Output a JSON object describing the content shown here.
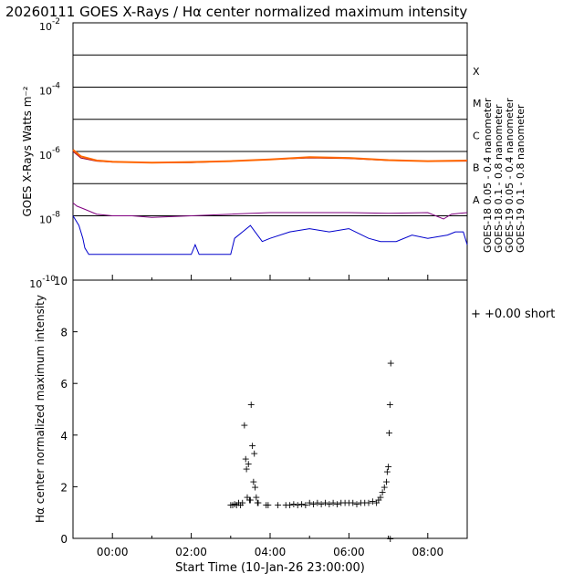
{
  "title": "20260111 GOES X-Rays / Hα center normalized maximum intensity",
  "colors": {
    "goes18_short": "#0000cc",
    "goes18_long": "#990033",
    "goes19_short": "#800080",
    "goes19_long": "#ff6600",
    "halpha": "#22dd22"
  },
  "chart_data": [
    {
      "type": "line",
      "name": "goes-xray-flux",
      "ylabel": "GOES X-Rays Watts m⁻²",
      "yscale": "log",
      "ylim_exp": [
        -10,
        -2
      ],
      "y_tick_labels": [
        {
          "exp": -2,
          "base": "10",
          "sup": "-2"
        },
        {
          "exp": -4,
          "base": "10",
          "sup": "-4"
        },
        {
          "exp": -6,
          "base": "10",
          "sup": "-6"
        },
        {
          "exp": -8,
          "base": "10",
          "sup": "-8"
        },
        {
          "exp": -10,
          "base": "10",
          "sup": "-10"
        }
      ],
      "flare_class_lines_exp": [
        -3,
        -4,
        -5,
        -6,
        -7,
        -8
      ],
      "flare_classes": [
        {
          "label": "X",
          "exp": -3.5
        },
        {
          "label": "M",
          "exp": -4.5
        },
        {
          "label": "C",
          "exp": -5.5
        },
        {
          "label": "B",
          "exp": -6.5
        },
        {
          "label": "A",
          "exp": -7.5
        }
      ],
      "xlim_hours": [
        -1,
        9
      ],
      "series": [
        {
          "name": "GOES-18 0.05 - 0.4 nanometer",
          "color_key": "goes18_short",
          "points": [
            [
              -1.0,
              -8.0
            ],
            [
              -0.85,
              -8.3
            ],
            [
              -0.75,
              -8.7
            ],
            [
              -0.7,
              -9.0
            ],
            [
              -0.6,
              -9.2
            ],
            [
              0.0,
              -9.2
            ],
            [
              1.0,
              -9.2
            ],
            [
              2.0,
              -9.2
            ],
            [
              2.1,
              -8.9
            ],
            [
              2.2,
              -9.2
            ],
            [
              2.6,
              -9.2
            ],
            [
              3.0,
              -9.2
            ],
            [
              3.1,
              -8.7
            ],
            [
              3.3,
              -8.5
            ],
            [
              3.5,
              -8.3
            ],
            [
              3.8,
              -8.8
            ],
            [
              4.0,
              -8.7
            ],
            [
              4.5,
              -8.5
            ],
            [
              5.0,
              -8.4
            ],
            [
              5.5,
              -8.5
            ],
            [
              6.0,
              -8.4
            ],
            [
              6.5,
              -8.7
            ],
            [
              6.8,
              -8.8
            ],
            [
              7.2,
              -8.8
            ],
            [
              7.6,
              -8.6
            ],
            [
              8.0,
              -8.7
            ],
            [
              8.5,
              -8.6
            ],
            [
              8.7,
              -8.5
            ],
            [
              8.9,
              -8.5
            ],
            [
              9.0,
              -8.9
            ]
          ]
        },
        {
          "name": "GOES-18 0.1 - 0.8 nanometer",
          "color_key": "goes18_long",
          "points": [
            [
              -1.0,
              -6.0
            ],
            [
              -0.8,
              -6.2
            ],
            [
              -0.4,
              -6.3
            ],
            [
              0.0,
              -6.33
            ],
            [
              1.0,
              -6.35
            ],
            [
              2.0,
              -6.35
            ],
            [
              3.0,
              -6.3
            ],
            [
              4.0,
              -6.25
            ],
            [
              5.0,
              -6.2
            ],
            [
              6.0,
              -6.22
            ],
            [
              7.0,
              -6.28
            ],
            [
              8.0,
              -6.3
            ],
            [
              9.0,
              -6.3
            ]
          ]
        },
        {
          "name": "GOES-19 0.05 - 0.4 nanometer",
          "color_key": "goes19_short",
          "points": [
            [
              -1.0,
              -7.6
            ],
            [
              -0.9,
              -7.7
            ],
            [
              -0.7,
              -7.8
            ],
            [
              -0.4,
              -7.95
            ],
            [
              0.0,
              -8.0
            ],
            [
              0.5,
              -8.0
            ],
            [
              1.0,
              -8.05
            ],
            [
              2.0,
              -8.0
            ],
            [
              3.0,
              -7.95
            ],
            [
              4.0,
              -7.9
            ],
            [
              5.0,
              -7.9
            ],
            [
              6.0,
              -7.9
            ],
            [
              7.0,
              -7.92
            ],
            [
              8.0,
              -7.9
            ],
            [
              8.4,
              -8.1
            ],
            [
              8.6,
              -7.95
            ],
            [
              9.0,
              -7.9
            ]
          ]
        },
        {
          "name": "GOES-19 0.1 - 0.8 nanometer",
          "color_key": "goes19_long",
          "points": [
            [
              -1.0,
              -5.95
            ],
            [
              -0.8,
              -6.15
            ],
            [
              -0.4,
              -6.28
            ],
            [
              0.0,
              -6.32
            ],
            [
              1.0,
              -6.35
            ],
            [
              2.0,
              -6.33
            ],
            [
              3.0,
              -6.3
            ],
            [
              4.0,
              -6.25
            ],
            [
              5.0,
              -6.18
            ],
            [
              6.0,
              -6.2
            ],
            [
              7.0,
              -6.27
            ],
            [
              8.0,
              -6.3
            ],
            [
              9.0,
              -6.28
            ]
          ]
        }
      ]
    },
    {
      "type": "scatter",
      "name": "halpha-intensity",
      "ylabel": "Hα center normalized maximum intensity",
      "xlabel": "Start Time (10-Jan-26 23:00:00)",
      "ylim": [
        0,
        10
      ],
      "y_ticks": [
        0,
        2,
        4,
        6,
        8,
        10
      ],
      "xlim_hours": [
        -1,
        9
      ],
      "x_tick_labels": [
        {
          "h": 0,
          "label": "00:00"
        },
        {
          "h": 2,
          "label": "02:00"
        },
        {
          "h": 4,
          "label": "04:00"
        },
        {
          "h": 6,
          "label": "06:00"
        },
        {
          "h": 8,
          "label": "08:00"
        }
      ],
      "legend": "+ +0.00 short",
      "marker": "+",
      "points": [
        [
          3.0,
          1.3
        ],
        [
          3.05,
          1.3
        ],
        [
          3.1,
          1.35
        ],
        [
          3.15,
          1.3
        ],
        [
          3.2,
          1.4
        ],
        [
          3.25,
          1.3
        ],
        [
          3.3,
          1.4
        ],
        [
          3.35,
          4.4
        ],
        [
          3.38,
          3.1
        ],
        [
          3.4,
          2.7
        ],
        [
          3.42,
          1.6
        ],
        [
          3.45,
          2.9
        ],
        [
          3.48,
          1.5
        ],
        [
          3.5,
          1.5
        ],
        [
          3.52,
          5.2
        ],
        [
          3.55,
          3.6
        ],
        [
          3.58,
          2.2
        ],
        [
          3.6,
          3.3
        ],
        [
          3.62,
          2.0
        ],
        [
          3.65,
          1.6
        ],
        [
          3.68,
          1.4
        ],
        [
          3.7,
          1.4
        ],
        [
          3.9,
          1.3
        ],
        [
          3.95,
          1.3
        ],
        [
          4.2,
          1.3
        ],
        [
          4.4,
          1.3
        ],
        [
          4.5,
          1.3
        ],
        [
          4.6,
          1.35
        ],
        [
          4.7,
          1.3
        ],
        [
          4.8,
          1.35
        ],
        [
          4.9,
          1.3
        ],
        [
          5.0,
          1.4
        ],
        [
          5.1,
          1.35
        ],
        [
          5.2,
          1.4
        ],
        [
          5.3,
          1.35
        ],
        [
          5.4,
          1.4
        ],
        [
          5.5,
          1.35
        ],
        [
          5.6,
          1.4
        ],
        [
          5.7,
          1.35
        ],
        [
          5.8,
          1.4
        ],
        [
          5.9,
          1.4
        ],
        [
          6.0,
          1.4
        ],
        [
          6.1,
          1.4
        ],
        [
          6.2,
          1.35
        ],
        [
          6.3,
          1.4
        ],
        [
          6.4,
          1.4
        ],
        [
          6.5,
          1.4
        ],
        [
          6.6,
          1.45
        ],
        [
          6.7,
          1.4
        ],
        [
          6.75,
          1.5
        ],
        [
          6.8,
          1.6
        ],
        [
          6.85,
          1.8
        ],
        [
          6.9,
          2.0
        ],
        [
          6.95,
          2.2
        ],
        [
          6.97,
          2.6
        ],
        [
          7.0,
          2.8
        ],
        [
          7.02,
          4.1
        ],
        [
          7.04,
          5.2
        ],
        [
          7.06,
          6.8
        ],
        [
          7.05,
          0.0
        ]
      ]
    }
  ]
}
